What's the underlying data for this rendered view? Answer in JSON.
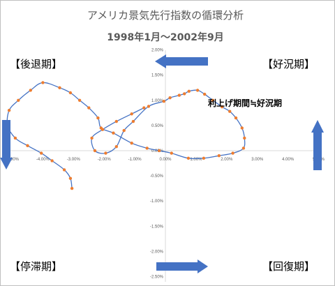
{
  "chart_data": {
    "type": "line",
    "title": "アメリカ景気先行指数の循環分析",
    "subtitle": "1998年1月～2002年9月",
    "xlim": [
      -5.0,
      5.0
    ],
    "ylim": [
      -2.5,
      2.0
    ],
    "x_ticks": [
      -5.0,
      -4.0,
      -3.0,
      -2.0,
      -1.0,
      0.0,
      1.0,
      2.0,
      3.0,
      4.0,
      5.0
    ],
    "x_tick_labels": [
      "-5.00%",
      "-4.00%",
      "-3.00%",
      "-2.00%",
      "-1.00%",
      "0.00%",
      "1.00%",
      "2.00%",
      "3.00%",
      "4.00%",
      "5.00%"
    ],
    "y_ticks": [
      2.0,
      1.5,
      1.0,
      0.5,
      0.0,
      -0.5,
      -1.0,
      -1.5,
      -2.0,
      -2.5
    ],
    "y_tick_labels": [
      "2.00%",
      "1.50%",
      "1.00%",
      "0.50%",
      "0.00%",
      "-0.50%",
      "-1.00%",
      "-1.50%",
      "-2.00%",
      "-2.50%"
    ],
    "series": [
      {
        "marker_color": "#ED7D31",
        "line_color": "#4472C4",
        "points": [
          [
            -0.7,
            0.85
          ],
          [
            -1.1,
            0.73
          ],
          [
            -1.6,
            0.58
          ],
          [
            -2.05,
            0.42
          ],
          [
            -2.4,
            0.25
          ],
          [
            -2.3,
            0.0
          ],
          [
            -1.95,
            -0.05
          ],
          [
            -1.6,
            0.08
          ],
          [
            -1.35,
            0.4
          ],
          [
            -1.05,
            0.58
          ],
          [
            -0.55,
            0.88
          ],
          [
            -0.05,
            0.98
          ],
          [
            0.15,
            1.05
          ],
          [
            0.45,
            1.1
          ],
          [
            0.62,
            1.13
          ],
          [
            0.77,
            1.18
          ],
          [
            1.05,
            1.2
          ],
          [
            1.28,
            1.12
          ],
          [
            1.55,
            1.0
          ],
          [
            1.85,
            0.87
          ],
          [
            2.1,
            0.78
          ],
          [
            2.3,
            0.65
          ],
          [
            2.5,
            0.45
          ],
          [
            2.58,
            0.25
          ],
          [
            2.55,
            0.05
          ],
          [
            2.2,
            -0.05
          ],
          [
            1.75,
            -0.1
          ],
          [
            1.25,
            -0.15
          ],
          [
            0.75,
            -0.15
          ],
          [
            0.2,
            -0.05
          ],
          [
            -0.2,
            0.0
          ],
          [
            -0.6,
            0.05
          ],
          [
            -1.1,
            0.15
          ],
          [
            -1.7,
            0.35
          ],
          [
            -2.1,
            0.45
          ],
          [
            -2.2,
            0.65
          ],
          [
            -2.5,
            0.85
          ],
          [
            -2.8,
            1.0
          ],
          [
            -3.1,
            1.15
          ],
          [
            -3.45,
            1.25
          ],
          [
            -4.0,
            1.35
          ],
          [
            -4.4,
            1.2
          ],
          [
            -4.8,
            1.0
          ],
          [
            -5.1,
            0.8
          ],
          [
            -5.15,
            0.5
          ],
          [
            -4.9,
            0.25
          ],
          [
            -4.5,
            0.1
          ],
          [
            -4.05,
            -0.05
          ],
          [
            -3.7,
            -0.2
          ],
          [
            -3.3,
            -0.38
          ],
          [
            -3.1,
            -0.55
          ],
          [
            -3.05,
            -0.75
          ]
        ]
      }
    ]
  },
  "quadrant_labels": {
    "top_left": "【後退期】",
    "top_right": "【好況期】",
    "bottom_left": "【停滞期】",
    "bottom_right": "【回復期】"
  },
  "annotation": "利上げ期間≒好況期",
  "colors": {
    "arrow": "#4472C4",
    "axis": "#D9D9D9",
    "text": "#595959"
  }
}
